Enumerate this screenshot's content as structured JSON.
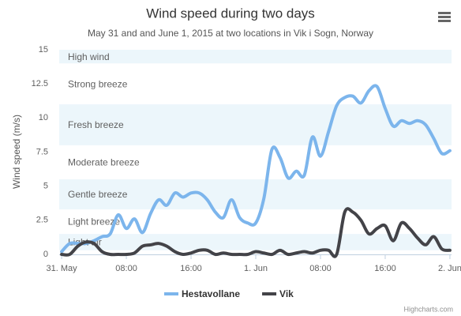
{
  "chart_data": {
    "type": "spline",
    "title": "Wind speed during two days",
    "subtitle": "May 31 and and June 1, 2015 at two locations in Vik i Sogn, Norway",
    "y_axis_label": "Wind speed (m/s)",
    "x": [
      0,
      1,
      2,
      3,
      4,
      5,
      6,
      7,
      8,
      9,
      10,
      11,
      12,
      13,
      14,
      15,
      16,
      17,
      18,
      19,
      20,
      21,
      22,
      23,
      24,
      25,
      26,
      27,
      28,
      29,
      30,
      31,
      32,
      33,
      34,
      35,
      36,
      37,
      38,
      39,
      40,
      41,
      42,
      43,
      44,
      45,
      46,
      47,
      48
    ],
    "xlim": [
      -0.3,
      48.2
    ],
    "xticks": [
      {
        "value": 0,
        "label": "31. May"
      },
      {
        "value": 8,
        "label": "08:00"
      },
      {
        "value": 16,
        "label": "16:00"
      },
      {
        "value": 24,
        "label": "1. Jun"
      },
      {
        "value": 32,
        "label": "08:00"
      },
      {
        "value": 40,
        "label": "16:00"
      },
      {
        "value": 48,
        "label": "2. Jun"
      }
    ],
    "ylim": [
      0,
      15
    ],
    "yticks": [
      0,
      2.5,
      5,
      7.5,
      10,
      12.5,
      15
    ],
    "plot_bands": [
      {
        "from": 0.3,
        "to": 1.5,
        "label": "Light air",
        "color": "rgba(68,170,213,0.1)"
      },
      {
        "from": 1.5,
        "to": 3.3,
        "label": "Light breeze",
        "color": "rgba(0,0,0,0)"
      },
      {
        "from": 3.3,
        "to": 5.5,
        "label": "Gentle breeze",
        "color": "rgba(68,170,213,0.1)"
      },
      {
        "from": 5.5,
        "to": 8,
        "label": "Moderate breeze",
        "color": "rgba(0,0,0,0)"
      },
      {
        "from": 8,
        "to": 11,
        "label": "Fresh breeze",
        "color": "rgba(68,170,213,0.1)"
      },
      {
        "from": 11,
        "to": 14,
        "label": "Strong breeze",
        "color": "rgba(0,0,0,0)"
      },
      {
        "from": 14,
        "to": 15,
        "label": "High wind",
        "color": "rgba(68,170,213,0.1)"
      }
    ],
    "series": [
      {
        "name": "Hestavollane",
        "color": "#7cb5ec",
        "values": [
          0.2,
          0.8,
          0.8,
          0.8,
          1,
          1.3,
          1.5,
          2.9,
          1.9,
          2.6,
          1.6,
          3,
          4,
          3.6,
          4.5,
          4.2,
          4.5,
          4.5,
          4,
          3.1,
          2.7,
          4,
          2.7,
          2.3,
          2.3,
          4.1,
          7.7,
          7.1,
          5.6,
          6.1,
          5.8,
          8.6,
          7.2,
          9,
          10.9,
          11.5,
          11.6,
          11.1,
          12,
          12.3,
          10.7,
          9.4,
          9.8,
          9.6,
          9.8,
          9.5,
          8.5,
          7.4,
          7.6
        ]
      },
      {
        "name": "Vik",
        "color": "#434348",
        "values": [
          0,
          0,
          0.6,
          0.9,
          0.8,
          0.2,
          0,
          0,
          0,
          0.1,
          0.6,
          0.7,
          0.8,
          0.6,
          0.2,
          0,
          0.1,
          0.3,
          0.3,
          0,
          0.1,
          0,
          0,
          0,
          0.2,
          0.1,
          0,
          0.3,
          0,
          0.1,
          0.2,
          0.1,
          0.3,
          0.3,
          0,
          3.1,
          3.1,
          2.5,
          1.5,
          1.9,
          2.1,
          1,
          2.3,
          1.9,
          1.2,
          0.7,
          1.3,
          0.4,
          0.3
        ]
      }
    ],
    "legend": "bottom",
    "credits": "Highcharts.com"
  }
}
